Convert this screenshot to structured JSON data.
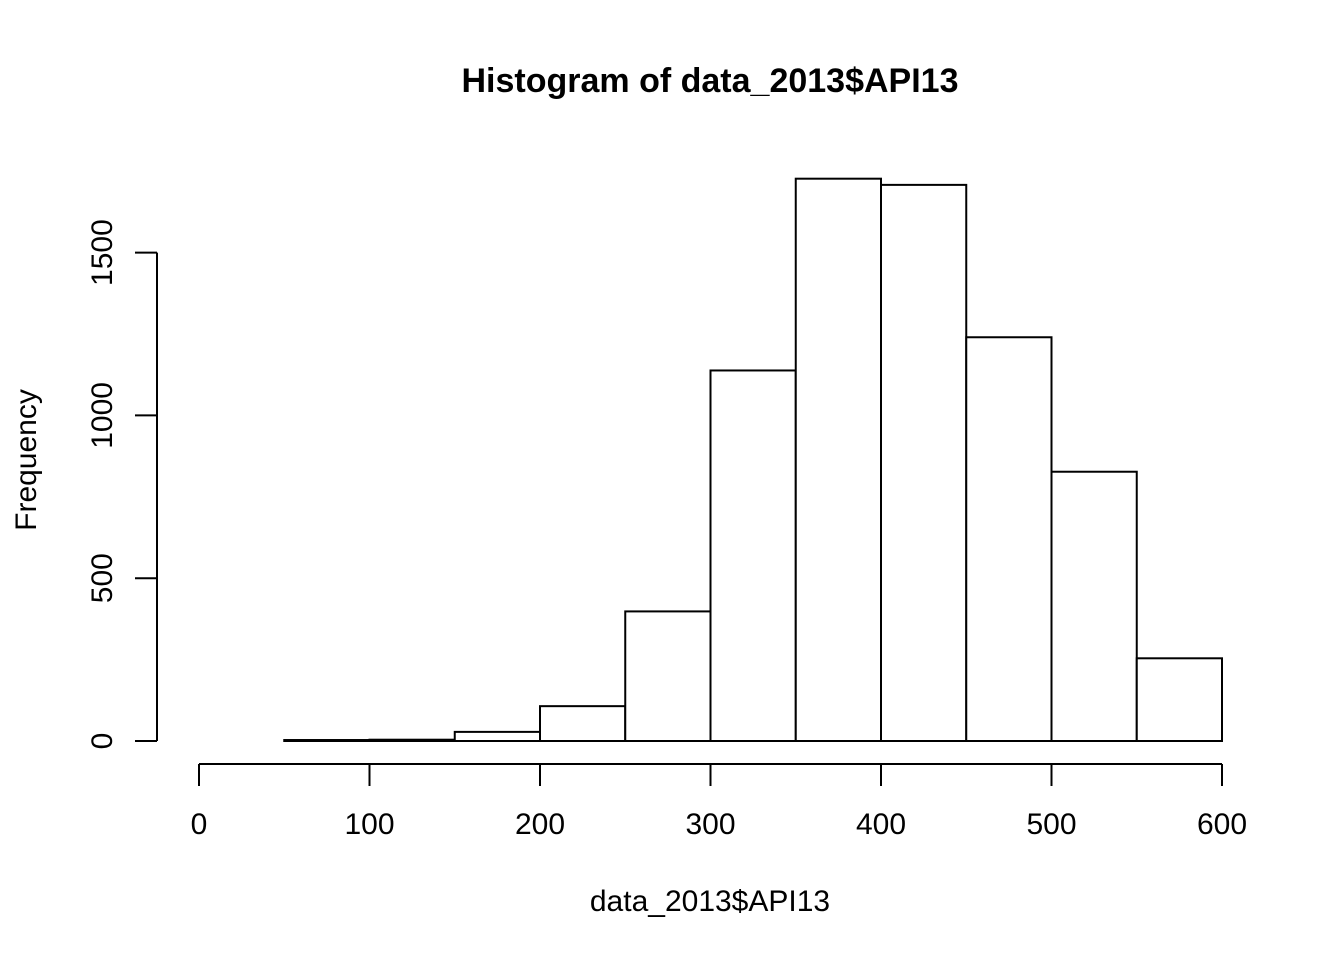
{
  "chart_data": {
    "type": "bar",
    "subtype": "histogram",
    "title": "Histogram of data_2013$API13",
    "xlabel": "data_2013$API13",
    "ylabel": "Frequency",
    "bins": [
      {
        "start": 0,
        "end": 50,
        "count": 0
      },
      {
        "start": 50,
        "end": 100,
        "count": 3
      },
      {
        "start": 100,
        "end": 150,
        "count": 4
      },
      {
        "start": 150,
        "end": 200,
        "count": 28
      },
      {
        "start": 200,
        "end": 250,
        "count": 107
      },
      {
        "start": 250,
        "end": 300,
        "count": 398
      },
      {
        "start": 300,
        "end": 350,
        "count": 1138
      },
      {
        "start": 350,
        "end": 400,
        "count": 1727
      },
      {
        "start": 400,
        "end": 450,
        "count": 1708
      },
      {
        "start": 450,
        "end": 500,
        "count": 1240
      },
      {
        "start": 500,
        "end": 550,
        "count": 827
      },
      {
        "start": 550,
        "end": 600,
        "count": 254
      }
    ],
    "xlim": [
      0,
      600
    ],
    "ylim": [
      0,
      1727
    ],
    "x_ticks": [
      0,
      100,
      200,
      300,
      400,
      500,
      600
    ],
    "y_ticks": [
      0,
      500,
      1000,
      1500
    ],
    "bar_fill": "#ffffff",
    "bar_stroke": "#000000",
    "grid": false
  }
}
